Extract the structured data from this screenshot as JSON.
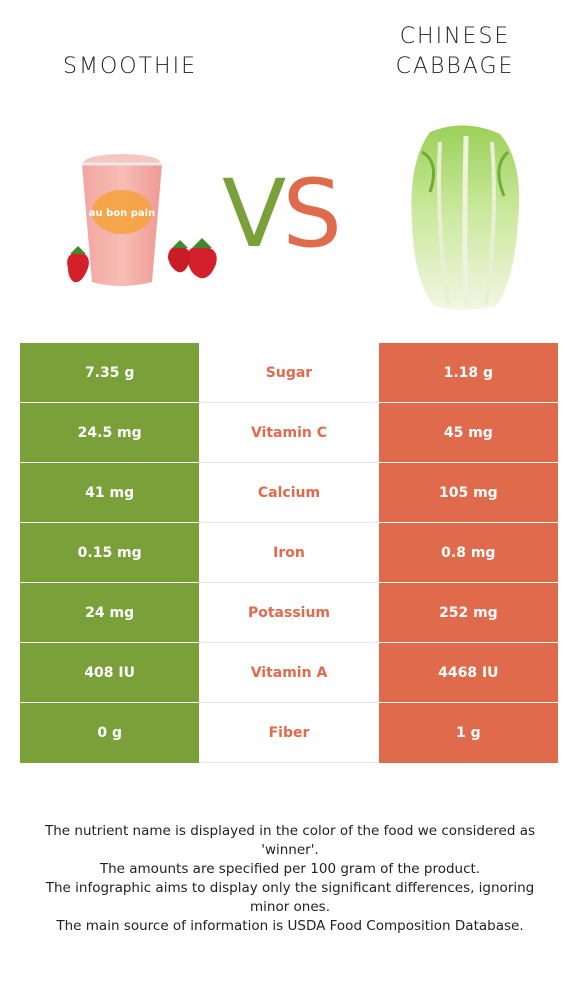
{
  "header": {
    "left_title": "SMOOTHIE",
    "right_title_line1": "CHINESE",
    "right_title_line2": "CABBAGE",
    "vs_v": "V",
    "vs_s": "S"
  },
  "images": {
    "left": {
      "icon": "smoothie-cup-with-strawberries",
      "cup_brand": "au bon pain"
    },
    "right": {
      "icon": "chinese-cabbage-head"
    }
  },
  "colors": {
    "left_accent": "#7aa03a",
    "right_accent": "#e06a4c"
  },
  "rows": [
    {
      "nutrient": "Sugar",
      "left": "7.35 g",
      "right": "1.18 g"
    },
    {
      "nutrient": "Vitamin C",
      "left": "24.5 mg",
      "right": "45 mg"
    },
    {
      "nutrient": "Calcium",
      "left": "41 mg",
      "right": "105 mg"
    },
    {
      "nutrient": "Iron",
      "left": "0.15 mg",
      "right": "0.8 mg"
    },
    {
      "nutrient": "Potassium",
      "left": "24 mg",
      "right": "252 mg"
    },
    {
      "nutrient": "Vitamin A",
      "left": "408 IU",
      "right": "4468 IU"
    },
    {
      "nutrient": "Fiber",
      "left": "0 g",
      "right": "1 g"
    }
  ],
  "notes": [
    "The nutrient name is displayed in the color of the food we considered as 'winner'.",
    "The amounts are specified per 100 gram of the product.",
    "The infographic aims to display only the significant differences, ignoring minor ones.",
    "The main source of information is USDA Food Composition Database."
  ]
}
